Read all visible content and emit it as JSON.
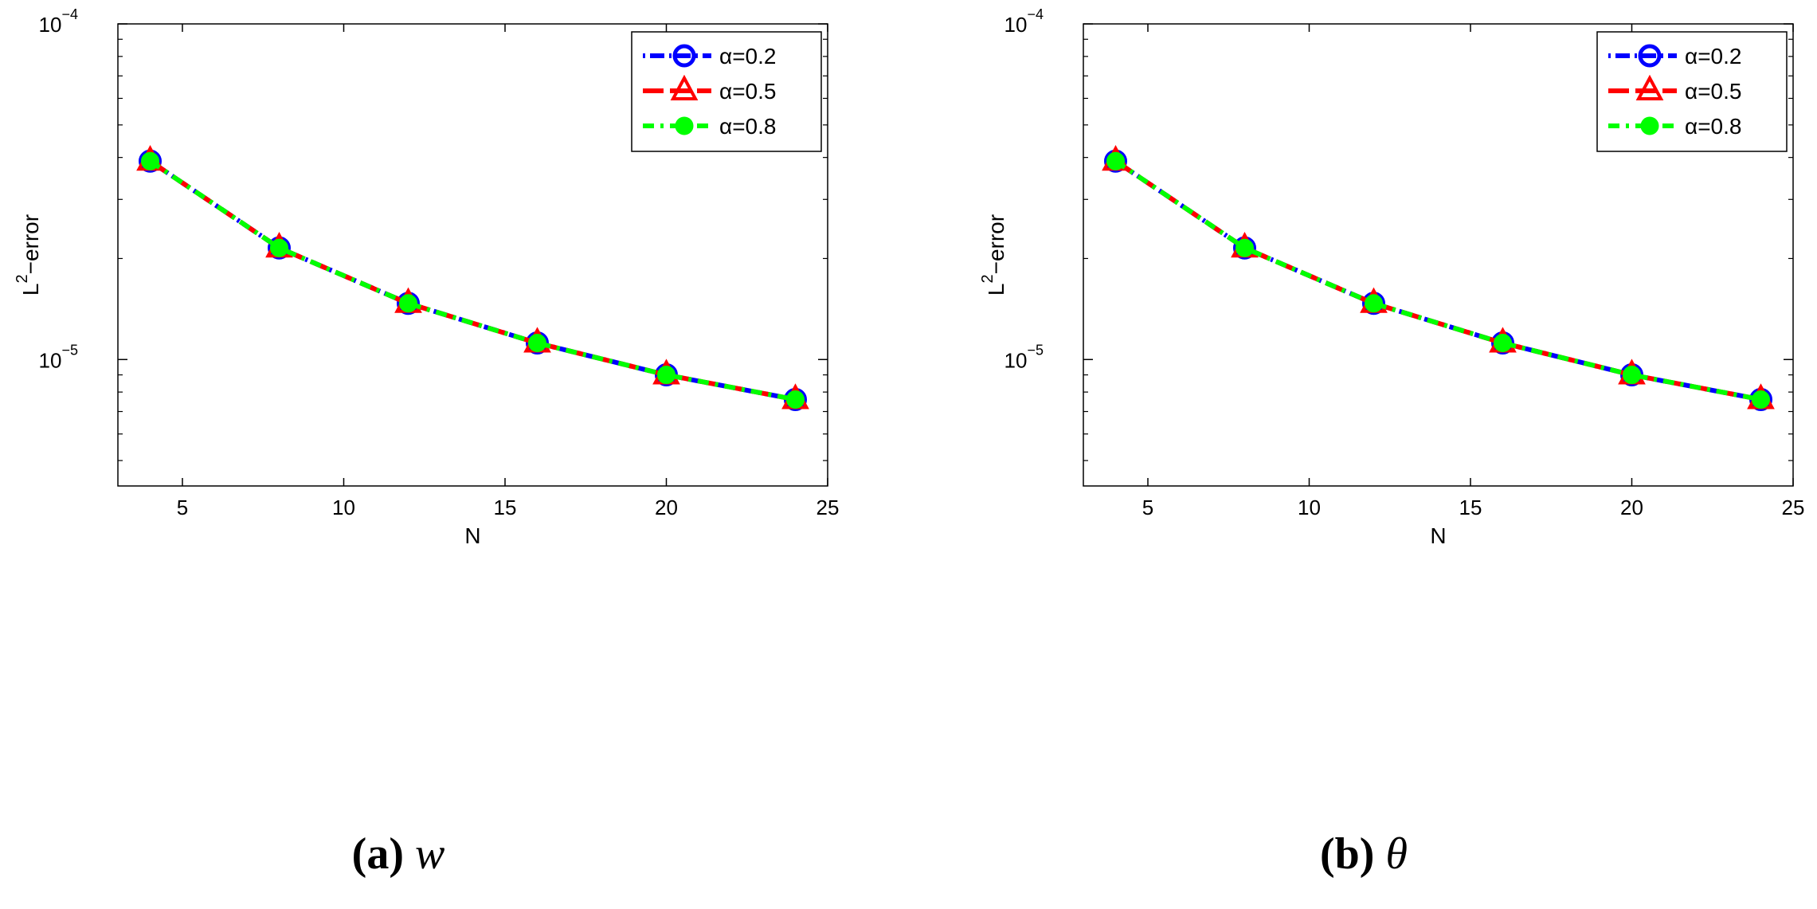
{
  "chart_data": [
    {
      "type": "line",
      "caption": {
        "tag": "(a)",
        "symbol": "w"
      },
      "xlabel": "N",
      "ylabel": "L",
      "ylabel_sup": "2",
      "ylabel_suffix": "−error",
      "xlim": [
        3,
        25
      ],
      "ylim": [
        4.2e-06,
        0.0001
      ],
      "yscale": "log",
      "xticks": [
        5,
        10,
        15,
        20,
        25
      ],
      "xtick_labels": [
        "5",
        "10",
        "15",
        "20",
        "25"
      ],
      "yticks_major": [
        {
          "value": 1e-05,
          "base": "10",
          "exp": "−5"
        },
        {
          "value": 0.0001,
          "base": "10",
          "exp": "−4"
        }
      ],
      "grid": false,
      "legend_position": "top-right",
      "x": [
        4,
        8,
        12,
        16,
        20,
        24
      ],
      "series": [
        {
          "name": "α=0.2",
          "color": "#0000ff",
          "marker": "circle",
          "values": [
            3.9e-05,
            2.15e-05,
            1.47e-05,
            1.12e-05,
            9e-06,
            7.6e-06
          ]
        },
        {
          "name": "α=0.5",
          "color": "#ff0000",
          "marker": "triangle",
          "values": [
            3.9e-05,
            2.15e-05,
            1.47e-05,
            1.12e-05,
            9e-06,
            7.6e-06
          ]
        },
        {
          "name": "α=0.8",
          "color": "#00ff00",
          "marker": "dot",
          "values": [
            3.9e-05,
            2.15e-05,
            1.47e-05,
            1.12e-05,
            9e-06,
            7.6e-06
          ]
        }
      ]
    },
    {
      "type": "line",
      "caption": {
        "tag": "(b)",
        "symbol": "θ"
      },
      "xlabel": "N",
      "ylabel": "L",
      "ylabel_sup": "2",
      "ylabel_suffix": "−error",
      "xlim": [
        3,
        25
      ],
      "ylim": [
        4.2e-06,
        0.0001
      ],
      "yscale": "log",
      "xticks": [
        5,
        10,
        15,
        20,
        25
      ],
      "xtick_labels": [
        "5",
        "10",
        "15",
        "20",
        "25"
      ],
      "yticks_major": [
        {
          "value": 1e-05,
          "base": "10",
          "exp": "−5"
        },
        {
          "value": 0.0001,
          "base": "10",
          "exp": "−4"
        }
      ],
      "grid": false,
      "legend_position": "top-right",
      "x": [
        4,
        8,
        12,
        16,
        20,
        24
      ],
      "series": [
        {
          "name": "α=0.2",
          "color": "#0000ff",
          "marker": "circle",
          "values": [
            3.9e-05,
            2.15e-05,
            1.47e-05,
            1.12e-05,
            9e-06,
            7.6e-06
          ]
        },
        {
          "name": "α=0.5",
          "color": "#ff0000",
          "marker": "triangle",
          "values": [
            3.9e-05,
            2.15e-05,
            1.47e-05,
            1.12e-05,
            9e-06,
            7.6e-06
          ]
        },
        {
          "name": "α=0.8",
          "color": "#00ff00",
          "marker": "dot",
          "values": [
            3.9e-05,
            2.15e-05,
            1.47e-05,
            1.12e-05,
            9e-06,
            7.6e-06
          ]
        }
      ]
    }
  ]
}
